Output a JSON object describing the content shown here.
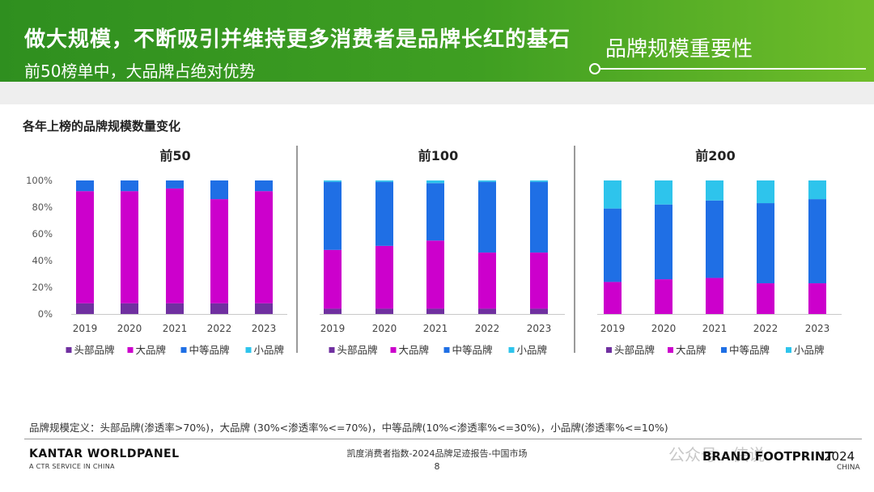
{
  "header": {
    "title": "做大规模，不断吸引并维持更多消费者是品牌长红的基石",
    "subtitle": "前50榜单中，大品牌占绝对优势",
    "tag": "品牌规模重要性"
  },
  "section_title": "各年上榜的品牌规模数量变化",
  "footnote": "品牌规模定义：头部品牌(渗透率>70%)，大品牌 (30%<渗透率%<=70%)，中等品牌(10%<渗透率%<=30%)，小品牌(渗透率%<=10%)",
  "footer": {
    "logo": "KANTAR WORLDPANEL",
    "logo_sub": "A CTR SERVICE IN CHINA",
    "center": "凯度消费者指数-2024品牌足迹报告-中国市场",
    "page": "8",
    "watermark": "公众号 · 侠说",
    "brand": "BRAND FOOTPRINT",
    "year": "2024",
    "country": "CHINA"
  },
  "colors": {
    "banner": "#3f9f22",
    "head": "#7030a0",
    "big": "#cc00cc",
    "mid": "#1f6fe5",
    "small": "#2ec4ec"
  },
  "chart_data": [
    {
      "type": "bar",
      "stacked": true,
      "title": "前50",
      "categories": [
        "2019",
        "2020",
        "2021",
        "2022",
        "2023"
      ],
      "yticks": [
        "0%",
        "20%",
        "40%",
        "60%",
        "80%",
        "100%"
      ],
      "ylim": [
        0,
        100
      ],
      "series": [
        {
          "name": "头部品牌",
          "values": [
            8,
            8,
            8,
            8,
            8
          ]
        },
        {
          "name": "大品牌",
          "values": [
            84,
            84,
            86,
            78,
            84
          ]
        },
        {
          "name": "中等品牌",
          "values": [
            8,
            8,
            6,
            14,
            8
          ]
        },
        {
          "name": "小品牌",
          "values": [
            0,
            0,
            0,
            0,
            0
          ]
        }
      ]
    },
    {
      "type": "bar",
      "stacked": true,
      "title": "前100",
      "categories": [
        "2019",
        "2020",
        "2021",
        "2022",
        "2023"
      ],
      "ylim": [
        0,
        100
      ],
      "series": [
        {
          "name": "头部品牌",
          "values": [
            4,
            4,
            4,
            4,
            4
          ]
        },
        {
          "name": "大品牌",
          "values": [
            44,
            47,
            51,
            42,
            42
          ]
        },
        {
          "name": "中等品牌",
          "values": [
            51,
            48,
            43,
            53,
            53
          ]
        },
        {
          "name": "小品牌",
          "values": [
            1,
            1,
            2,
            1,
            1
          ]
        }
      ]
    },
    {
      "type": "bar",
      "stacked": true,
      "title": "前200",
      "categories": [
        "2019",
        "2020",
        "2021",
        "2022",
        "2023"
      ],
      "ylim": [
        0,
        100
      ],
      "series": [
        {
          "name": "头部品牌",
          "values": [
            0,
            0,
            0,
            0,
            0
          ]
        },
        {
          "name": "大品牌",
          "values": [
            24,
            26,
            27,
            23,
            23
          ]
        },
        {
          "name": "中等品牌",
          "values": [
            55,
            56,
            58,
            60,
            63
          ]
        },
        {
          "name": "小品牌",
          "values": [
            21,
            18,
            15,
            17,
            14
          ]
        }
      ]
    }
  ]
}
